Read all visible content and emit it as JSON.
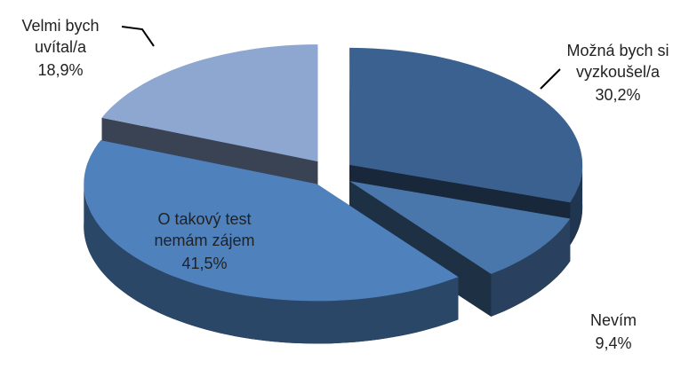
{
  "chart_data": {
    "type": "pie",
    "categories": [
      "Možná bych si\nvyzkoušel/a",
      "Nevím",
      "O takový test\nnemám zájem",
      "Velmi bych\nuvítal/a"
    ],
    "values": [
      30.2,
      9.4,
      41.5,
      18.9
    ],
    "value_labels": [
      "30,2%",
      "9,4%",
      "41,5%",
      "18,9%"
    ],
    "colors": [
      "#3b6190",
      "#4a77ab",
      "#4f81bd",
      "#8ea7d1"
    ]
  }
}
